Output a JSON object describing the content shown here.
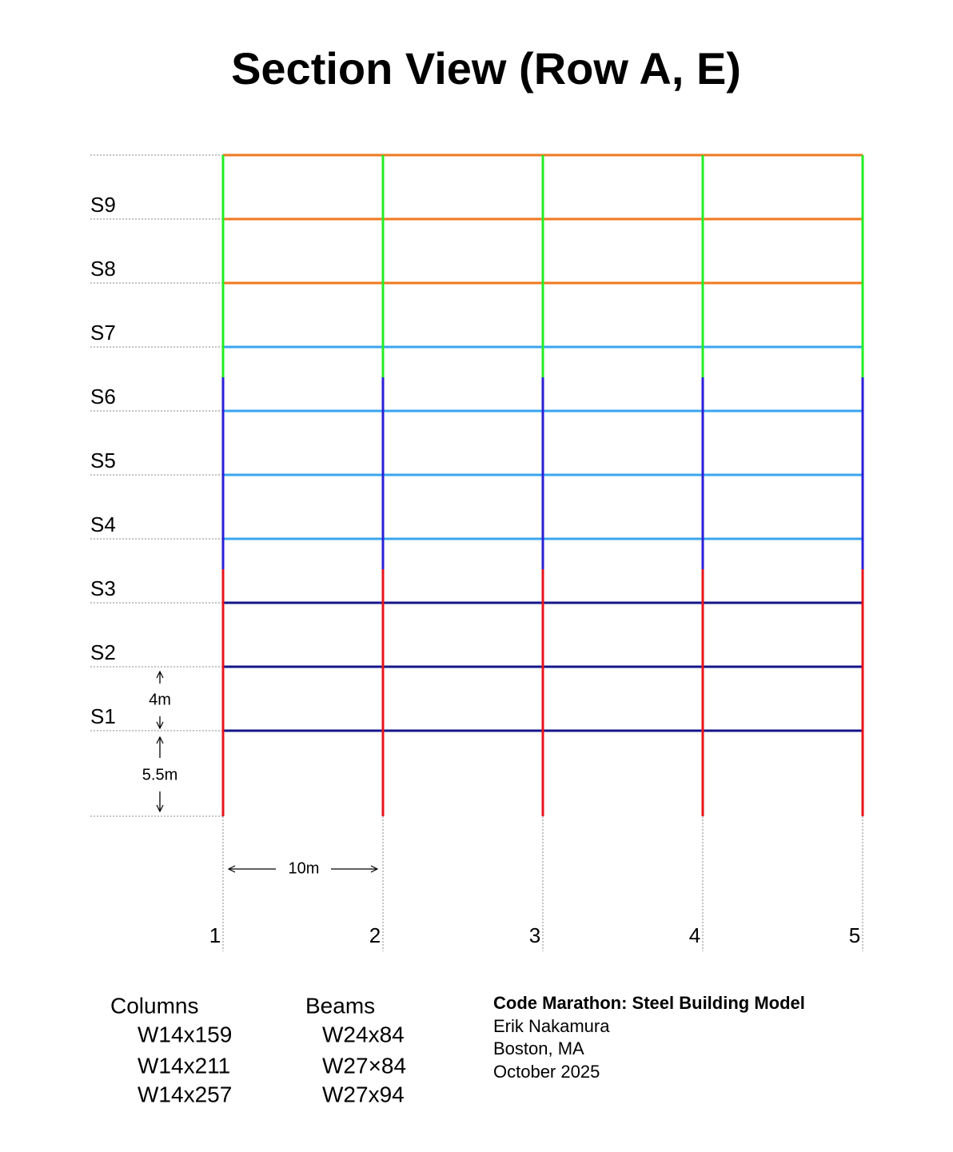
{
  "title": "Section View (Row A, E)",
  "levels": [
    "S1",
    "S2",
    "S3",
    "S4",
    "S5",
    "S6",
    "S7",
    "S8",
    "S9"
  ],
  "gridlines": [
    "1",
    "2",
    "3",
    "4",
    "5"
  ],
  "dimensions": {
    "story": "4m",
    "ground": "5.5m",
    "bay": "10m"
  },
  "legend": {
    "columns": {
      "title": "Columns",
      "items": [
        {
          "label": "W14x159",
          "color": "#22ee22"
        },
        {
          "label": "W14x211",
          "color": "#2a1fd6"
        },
        {
          "label": "W14x257",
          "color": "#e8141b"
        }
      ]
    },
    "beams": {
      "title": "Beams",
      "items": [
        {
          "label": "W24x84",
          "color": "#f07820"
        },
        {
          "label": "W27×84",
          "color": "#3aa4ef"
        },
        {
          "label": "W27x94",
          "color": "#15168a"
        }
      ]
    }
  },
  "credits": {
    "title": "Code Marathon: Steel Building Model",
    "lines": [
      "Erik Nakamura",
      "Boston, MA",
      "October 2025"
    ]
  }
}
